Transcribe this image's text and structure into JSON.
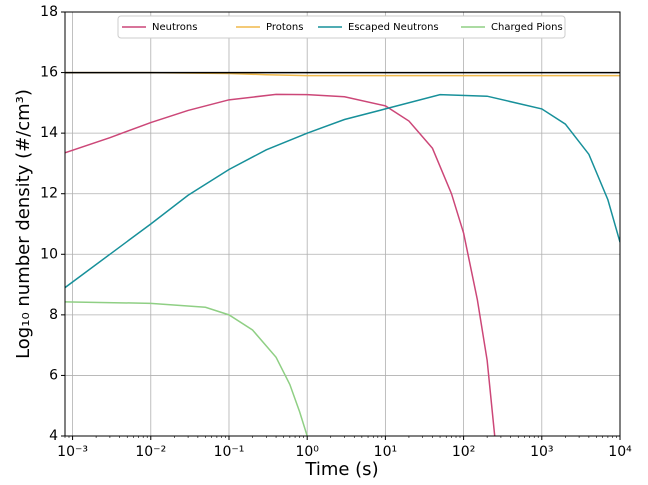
{
  "chart_data": {
    "type": "line",
    "xlabel": "Time (s)",
    "ylabel": "Log₁₀ number density (#/cm³)",
    "xscale": "log",
    "xlim": [
      0.0008,
      10000
    ],
    "ylim": [
      4,
      18
    ],
    "xticks": [
      {
        "value": 0.001,
        "label": "10⁻³"
      },
      {
        "value": 0.01,
        "label": "10⁻²"
      },
      {
        "value": 0.1,
        "label": "10⁻¹"
      },
      {
        "value": 1,
        "label": "10⁰"
      },
      {
        "value": 10,
        "label": "10¹"
      },
      {
        "value": 100,
        "label": "10²"
      },
      {
        "value": 1000,
        "label": "10³"
      },
      {
        "value": 10000,
        "label": "10⁴"
      }
    ],
    "yticks": [
      4,
      6,
      8,
      10,
      12,
      14,
      16,
      18
    ],
    "grid": true,
    "legend": "upper center",
    "hline": {
      "value": 16,
      "color": "#000000"
    },
    "series": [
      {
        "name": "Neutrons",
        "color": "#cc4778",
        "x": [
          0.0008,
          0.003,
          0.01,
          0.03,
          0.1,
          0.4,
          1,
          3,
          10,
          20,
          40,
          70,
          100,
          150,
          200,
          250
        ],
        "values": [
          13.35,
          13.85,
          14.35,
          14.75,
          15.1,
          15.28,
          15.27,
          15.2,
          14.9,
          14.4,
          13.5,
          12.0,
          10.7,
          8.5,
          6.5,
          4.0
        ]
      },
      {
        "name": "Protons",
        "color": "#f0b94a",
        "x": [
          0.0008,
          0.01,
          0.1,
          0.3,
          1,
          10,
          100,
          1000,
          10000
        ],
        "values": [
          16.0,
          16.0,
          15.97,
          15.93,
          15.9,
          15.9,
          15.9,
          15.9,
          15.9
        ]
      },
      {
        "name": "Escaped Neutrons",
        "color": "#17909a",
        "x": [
          0.0008,
          0.003,
          0.01,
          0.03,
          0.1,
          0.3,
          1,
          3,
          10,
          50,
          200,
          1000,
          2000,
          4000,
          7000,
          10000
        ],
        "values": [
          8.9,
          10.0,
          11.0,
          11.95,
          12.8,
          13.45,
          14.0,
          14.45,
          14.8,
          15.27,
          15.22,
          14.8,
          14.3,
          13.3,
          11.8,
          10.4
        ]
      },
      {
        "name": "Charged Pions",
        "color": "#8fcf84",
        "x": [
          0.0008,
          0.01,
          0.05,
          0.1,
          0.2,
          0.4,
          0.6,
          0.8,
          1.0
        ],
        "values": [
          8.43,
          8.38,
          8.25,
          8.0,
          7.5,
          6.6,
          5.7,
          4.8,
          4.0
        ]
      }
    ]
  }
}
